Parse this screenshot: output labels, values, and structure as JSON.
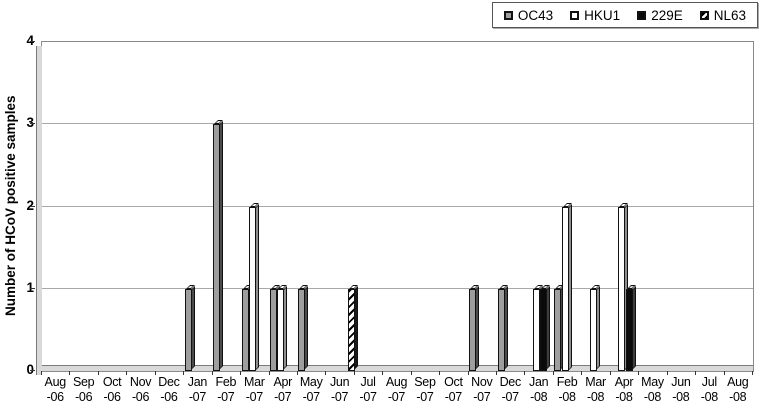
{
  "legend": {
    "position": "top-right",
    "items": [
      {
        "label": "OC43",
        "fill": "#9e9e9e",
        "pattern": "solid"
      },
      {
        "label": "HKU1",
        "fill": "#ffffff",
        "pattern": "solid"
      },
      {
        "label": "229E",
        "fill": "#0a0a0a",
        "pattern": "solid"
      },
      {
        "label": "NL63",
        "fill": "#000000",
        "pattern": "diagonal-hatch"
      }
    ]
  },
  "y_axis": {
    "title": "Number of HCoV positive samples",
    "tick_labels": [
      "0",
      "1",
      "2",
      "3",
      "4"
    ]
  },
  "chart_data": {
    "type": "bar",
    "title": "",
    "xlabel": "",
    "ylabel": "Number of HCoV positive samples",
    "ylim": [
      0,
      4
    ],
    "grid": true,
    "legend_position": "top-right",
    "categories": [
      "Aug-06",
      "Sep-06",
      "Oct-06",
      "Nov-06",
      "Dec-06",
      "Jan-07",
      "Feb-07",
      "Mar-07",
      "Apr-07",
      "May-07",
      "Jun-07",
      "Jul-07",
      "Aug-07",
      "Sep-07",
      "Oct-07",
      "Nov-07",
      "Dec-07",
      "Jan-08",
      "Feb-08",
      "Mar-08",
      "Apr-08",
      "May-08",
      "Jun-08",
      "Jul-08",
      "Aug-08"
    ],
    "series": [
      {
        "name": "OC43",
        "values": [
          0,
          0,
          0,
          0,
          0,
          1,
          3,
          1,
          1,
          1,
          0,
          0,
          0,
          0,
          0,
          1,
          1,
          0,
          1,
          0,
          0,
          0,
          0,
          0,
          0
        ],
        "style": {
          "face": "#9e9e9e",
          "side": "#4a4a4a",
          "top": "#e2e2e2",
          "pattern": "solid"
        }
      },
      {
        "name": "HKU1",
        "values": [
          0,
          0,
          0,
          0,
          0,
          0,
          0,
          2,
          1,
          0,
          0,
          0,
          0,
          0,
          0,
          0,
          0,
          1,
          2,
          1,
          2,
          0,
          0,
          0,
          0
        ],
        "style": {
          "face": "#ffffff",
          "side": "#8f8f8f",
          "top": "#ffffff",
          "pattern": "solid"
        }
      },
      {
        "name": "229E",
        "values": [
          0,
          0,
          0,
          0,
          0,
          0,
          0,
          0,
          0,
          0,
          0,
          0,
          0,
          0,
          0,
          0,
          0,
          1,
          0,
          0,
          1,
          0,
          0,
          0,
          0
        ],
        "style": {
          "face": "#0a0a0a",
          "side": "#3d3d3d",
          "top": "#d4d4d4",
          "pattern": "solid"
        }
      },
      {
        "name": "NL63",
        "values": [
          0,
          0,
          0,
          0,
          0,
          0,
          0,
          0,
          0,
          0,
          1,
          0,
          0,
          0,
          0,
          0,
          0,
          0,
          0,
          0,
          0,
          0,
          0,
          0,
          0
        ],
        "style": {
          "face": "#ffffff",
          "side": "#1a1a1a",
          "top": "#ffffff",
          "pattern": "diagonal-hatch"
        }
      }
    ]
  }
}
